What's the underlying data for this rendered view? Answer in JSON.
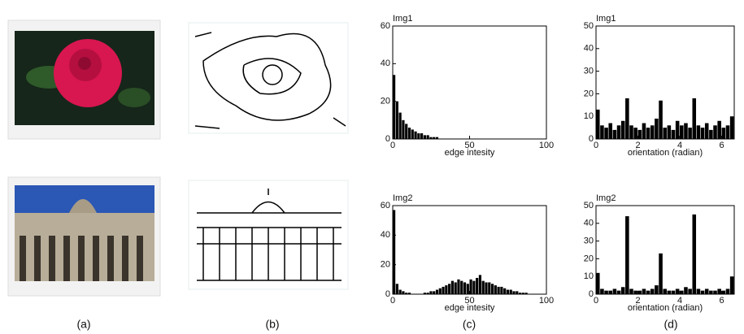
{
  "chart_data": [
    {
      "type": "histogram",
      "title": "Img1",
      "x_label": "edge intesity",
      "color": "#000000",
      "bins": [
        0,
        2,
        4,
        6,
        8,
        10,
        12,
        14,
        16,
        18,
        20,
        22,
        24,
        26,
        28,
        30,
        32,
        34,
        36,
        38,
        40,
        42,
        44,
        46,
        48,
        50,
        52,
        54,
        56,
        58,
        60,
        62,
        64,
        66,
        68,
        70,
        72,
        74,
        76,
        78,
        80,
        82,
        84,
        86,
        88,
        90,
        92,
        94,
        96,
        98,
        100
      ],
      "counts": [
        34,
        20,
        14,
        10,
        8,
        6,
        5,
        4,
        3,
        3,
        2,
        2,
        1,
        1,
        1,
        0,
        0,
        0,
        0,
        0,
        0,
        0,
        0,
        0,
        0,
        0,
        0,
        0,
        0,
        0,
        0,
        0,
        0,
        0,
        0,
        0,
        0,
        0,
        0,
        0,
        0,
        0,
        0,
        0,
        0,
        0,
        0,
        0,
        0,
        0
      ],
      "xlim": [
        0,
        100
      ],
      "ylim": [
        0,
        60
      ],
      "xticks": [
        0,
        50,
        100
      ],
      "yticks": [
        0,
        20,
        40,
        60
      ]
    },
    {
      "type": "histogram",
      "title": "Img2",
      "x_label": "edge intesity",
      "color": "#000000",
      "bins": [
        0,
        2,
        4,
        6,
        8,
        10,
        12,
        14,
        16,
        18,
        20,
        22,
        24,
        26,
        28,
        30,
        32,
        34,
        36,
        38,
        40,
        42,
        44,
        46,
        48,
        50,
        52,
        54,
        56,
        58,
        60,
        62,
        64,
        66,
        68,
        70,
        72,
        74,
        76,
        78,
        80,
        82,
        84,
        86,
        88,
        90,
        92,
        94,
        96,
        98,
        100
      ],
      "counts": [
        57,
        7,
        3,
        2,
        1,
        1,
        0,
        0,
        0,
        0,
        1,
        1,
        2,
        2,
        3,
        4,
        5,
        6,
        7,
        9,
        8,
        10,
        9,
        8,
        7,
        10,
        9,
        11,
        13,
        9,
        8,
        8,
        7,
        6,
        5,
        5,
        4,
        3,
        3,
        2,
        2,
        1,
        1,
        1,
        0,
        0,
        0,
        0,
        0,
        0
      ],
      "xlim": [
        0,
        100
      ],
      "ylim": [
        0,
        60
      ],
      "xticks": [
        0,
        50,
        100
      ],
      "yticks": [
        0,
        20,
        40,
        60
      ]
    },
    {
      "type": "histogram",
      "title": "Img1",
      "x_label": "orientation (radian)",
      "color": "#000000",
      "bins": [
        0,
        0.2,
        0.4,
        0.6,
        0.8,
        1,
        1.2,
        1.4,
        1.6,
        1.8,
        2,
        2.2,
        2.4,
        2.6,
        2.8,
        3,
        3.2,
        3.4,
        3.6,
        3.8,
        4,
        4.2,
        4.4,
        4.6,
        4.8,
        5,
        5.2,
        5.4,
        5.6,
        5.8,
        6,
        6.2,
        6.4,
        6.6
      ],
      "counts": [
        13,
        6,
        5,
        7,
        4,
        6,
        8,
        18,
        6,
        5,
        4,
        7,
        5,
        6,
        9,
        17,
        5,
        6,
        4,
        8,
        6,
        7,
        5,
        18,
        6,
        5,
        7,
        4,
        6,
        8,
        5,
        6,
        10
      ],
      "xlim": [
        0,
        6.6
      ],
      "ylim": [
        0,
        50
      ],
      "xticks": [
        0,
        2,
        4,
        6
      ],
      "yticks": [
        0,
        10,
        20,
        30,
        40,
        50
      ]
    },
    {
      "type": "histogram",
      "title": "Img2",
      "x_label": "orientation (radian)",
      "color": "#000000",
      "bins": [
        0,
        0.2,
        0.4,
        0.6,
        0.8,
        1,
        1.2,
        1.4,
        1.6,
        1.8,
        2,
        2.2,
        2.4,
        2.6,
        2.8,
        3,
        3.2,
        3.4,
        3.6,
        3.8,
        4,
        4.2,
        4.4,
        4.6,
        4.8,
        5,
        5.2,
        5.4,
        5.6,
        5.8,
        6,
        6.2,
        6.4,
        6.6
      ],
      "counts": [
        12,
        3,
        2,
        2,
        3,
        2,
        4,
        44,
        3,
        2,
        2,
        3,
        2,
        3,
        5,
        23,
        3,
        2,
        2,
        3,
        2,
        4,
        3,
        45,
        3,
        2,
        3,
        2,
        2,
        3,
        2,
        3,
        10
      ],
      "xlim": [
        0,
        6.6
      ],
      "ylim": [
        0,
        50
      ],
      "xticks": [
        0,
        2,
        4,
        6
      ],
      "yticks": [
        0,
        10,
        20,
        30,
        40,
        50
      ]
    }
  ],
  "figure": {
    "panel_labels": [
      "(a)",
      "(b)",
      "(c)",
      "(d)"
    ]
  }
}
